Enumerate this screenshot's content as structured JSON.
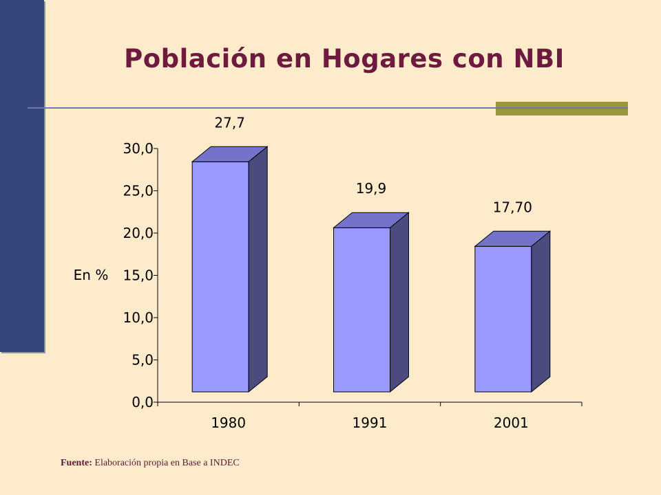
{
  "title": "Población en Hogares con NBI",
  "source_label": "Fuente:",
  "source_text": " Elaboración propia en Base a INDEC",
  "colors": {
    "bar_front": "#9999FF",
    "bar_top": "#7373CC",
    "bar_side": "#4B4B80",
    "title": "#6E1A3E",
    "left_bar": "#36467A"
  },
  "chart_data": {
    "type": "bar",
    "categories": [
      "1980",
      "1991",
      "2001"
    ],
    "values": [
      27.7,
      19.9,
      17.7
    ],
    "data_labels": [
      "27,7",
      "19,9",
      "17,70"
    ],
    "ylabel": "En %",
    "ylim": [
      0,
      30
    ],
    "y_ticks": [
      "0,0",
      "5,0",
      "10,0",
      "15,0",
      "20,0",
      "25,0",
      "30,0"
    ],
    "legend": "none",
    "grid": false
  }
}
